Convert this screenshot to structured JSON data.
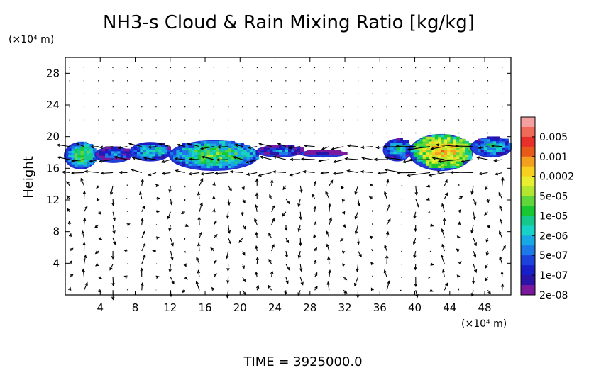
{
  "chart_data": {
    "type": "heatmap",
    "title": "NH3-s Cloud & Rain Mixing Ratio [kg/kg]",
    "ylabel": "Height",
    "y_unit": "(×10⁴ m)",
    "x_unit": "(×10⁴ m)",
    "footer": "TIME  =  3925000.0",
    "xlim": [
      0,
      51
    ],
    "ylim": [
      0,
      30
    ],
    "x_ticks": [
      "4",
      "8",
      "12",
      "16",
      "20",
      "24",
      "28",
      "32",
      "36",
      "40",
      "44",
      "48"
    ],
    "y_ticks": [
      "28",
      "24",
      "20",
      "16",
      "12",
      "8",
      "4"
    ],
    "colorbar": {
      "labels": [
        "0.005",
        "0.001",
        "0.0002",
        "5e-05",
        "1e-05",
        "2e-06",
        "5e-07",
        "1e-07",
        "2e-08"
      ],
      "colors": [
        "#f5a0a0",
        "#f06a5a",
        "#e8302a",
        "#e85a1a",
        "#f3a020",
        "#f8d020",
        "#e8ee30",
        "#b4e630",
        "#5fd73a",
        "#18c832",
        "#16c88c",
        "#18d2c8",
        "#18a8e6",
        "#1d78e8",
        "#1c42dc",
        "#181ec8",
        "#2a14a8",
        "#7a189e"
      ]
    },
    "cloud_regions": [
      {
        "x": [
          0,
          3.5
        ],
        "y": [
          16,
          19.2
        ],
        "level": "1e-05"
      },
      {
        "x": [
          3.5,
          7.5
        ],
        "y": [
          16.8,
          18.6
        ],
        "level": "5e-07"
      },
      {
        "x": [
          7.5,
          12
        ],
        "y": [
          17.0,
          19.2
        ],
        "level": "2e-06"
      },
      {
        "x": [
          12,
          22
        ],
        "y": [
          15.8,
          19.4
        ],
        "level": "1e-05"
      },
      {
        "x": [
          22,
          27
        ],
        "y": [
          17.5,
          18.8
        ],
        "level": "5e-07"
      },
      {
        "x": [
          27,
          32
        ],
        "y": [
          17.5,
          18.2
        ],
        "level": "2e-08"
      },
      {
        "x": [
          36.5,
          39.5
        ],
        "y": [
          17.0,
          19.6
        ],
        "level": "2e-06"
      },
      {
        "x": [
          39.5,
          46.5
        ],
        "y": [
          15.8,
          20.2
        ],
        "level": "0.0002"
      },
      {
        "x": [
          46.5,
          51
        ],
        "y": [
          17.5,
          19.8
        ],
        "level": "2e-06"
      }
    ]
  }
}
